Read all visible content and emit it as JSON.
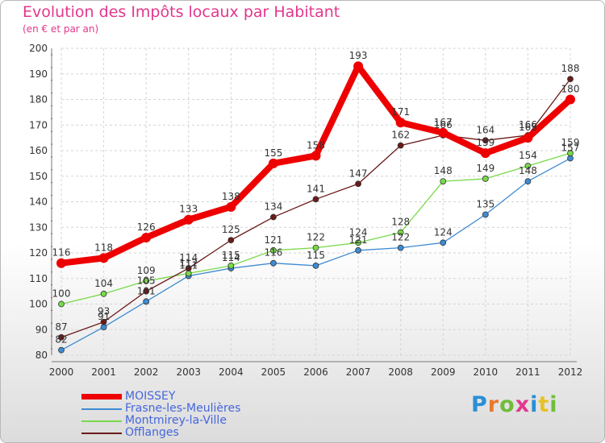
{
  "chart_data": {
    "type": "line",
    "title": "Evolution des Impôts locaux par Habitant",
    "subtitle": "(en € et par an)",
    "categories": [
      "2000",
      "2001",
      "2002",
      "2003",
      "2004",
      "2005",
      "2006",
      "2007",
      "2008",
      "2009",
      "2010",
      "2011",
      "2012"
    ],
    "ylim": [
      80,
      200
    ],
    "yticks": [
      80,
      90,
      100,
      110,
      120,
      130,
      140,
      150,
      160,
      170,
      180,
      190,
      200
    ],
    "grid": true,
    "legend_position": "bottom-left",
    "series": [
      {
        "name": "MOISSEY",
        "color": "#ee0000",
        "values": [
          116,
          118,
          126,
          133,
          138,
          155,
          158,
          193,
          171,
          167,
          159,
          165,
          180
        ]
      },
      {
        "name": "Frasne-les-Meulières",
        "color": "#3e8bd2",
        "values": [
          82,
          91,
          101,
          111,
          114,
          116,
          115,
          121,
          122,
          124,
          135,
          148,
          157
        ]
      },
      {
        "name": "Montmirey-la-Ville",
        "color": "#78d94a",
        "values": [
          100,
          104,
          109,
          112,
          115,
          121,
          122,
          124,
          128,
          148,
          149,
          154,
          159
        ]
      },
      {
        "name": "Offlanges",
        "color": "#6b1a1a",
        "values": [
          87,
          93,
          105,
          114,
          125,
          134,
          141,
          147,
          162,
          166,
          164,
          166,
          188
        ]
      }
    ]
  },
  "brand": {
    "logo_text": "Proxiti",
    "letter_colors": [
      "#2b8fd6",
      "#e8792a",
      "#6fbd3b",
      "#e23a8d",
      "#2b8fd6",
      "#e8c224",
      "#6fbd3b"
    ]
  }
}
